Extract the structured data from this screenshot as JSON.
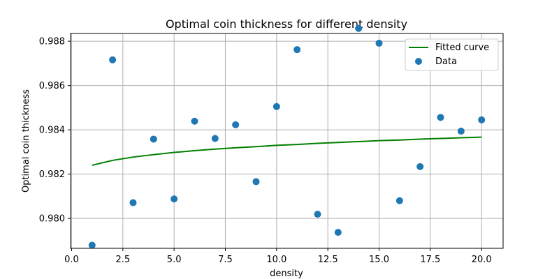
{
  "chart_data": {
    "type": "scatter",
    "title": "Optimal coin thickness for different density",
    "xlabel": "density",
    "ylabel": "Optimal coin thickness",
    "xlim": [
      -0.05,
      21.05
    ],
    "ylim": [
      0.97865,
      0.98835
    ],
    "xticks": [
      0.0,
      2.5,
      5.0,
      7.5,
      10.0,
      12.5,
      15.0,
      17.5,
      20.0
    ],
    "xtick_labels": [
      "0.0",
      "2.5",
      "5.0",
      "7.5",
      "10.0",
      "12.5",
      "15.0",
      "17.5",
      "20.0"
    ],
    "yticks": [
      0.98,
      0.982,
      0.984,
      0.986,
      0.988
    ],
    "ytick_labels": [
      "0.980",
      "0.982",
      "0.984",
      "0.986",
      "0.988"
    ],
    "grid": true,
    "legend": {
      "placement": "top-right",
      "entries": [
        "Fitted curve",
        "Data"
      ]
    },
    "colors": {
      "scatter": "#1f77b4",
      "line": "#008000",
      "grid": "#b0b0b0"
    },
    "series": [
      {
        "name": "Data",
        "type": "scatter",
        "x": [
          1,
          2,
          3,
          4,
          5,
          6,
          7,
          8,
          9,
          10,
          11,
          12,
          13,
          14,
          15,
          16,
          17,
          18,
          19,
          20
        ],
        "y": [
          0.97879,
          0.98716,
          0.98071,
          0.98358,
          0.98088,
          0.98439,
          0.98361,
          0.98423,
          0.98166,
          0.98505,
          0.98762,
          0.98019,
          0.97937,
          0.98858,
          0.98791,
          0.9808,
          0.98234,
          0.98456,
          0.98394,
          0.98445
        ]
      },
      {
        "name": "Fitted curve",
        "type": "line",
        "x": [
          1,
          2,
          3,
          4,
          5,
          6,
          7,
          8,
          9,
          10,
          11,
          12,
          13,
          14,
          15,
          16,
          17,
          18,
          19,
          20
        ],
        "y": [
          0.9824,
          0.98262,
          0.98277,
          0.98288,
          0.98298,
          0.98306,
          0.98313,
          0.98319,
          0.98324,
          0.9833,
          0.98334,
          0.98339,
          0.98343,
          0.98347,
          0.98351,
          0.98354,
          0.98358,
          0.98361,
          0.98364,
          0.98367
        ]
      }
    ]
  }
}
